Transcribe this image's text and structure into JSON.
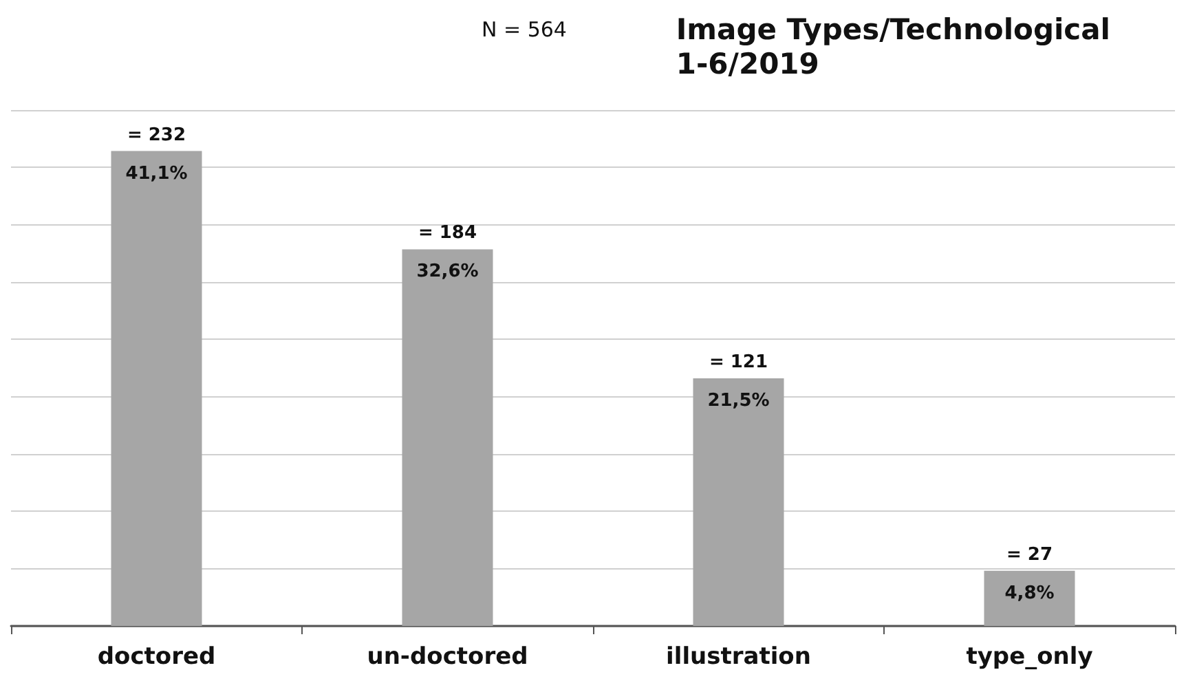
{
  "chart_data": {
    "type": "bar",
    "title": "Image Types/Technological",
    "subtitle": "1-6/2019",
    "categories": [
      "doctored",
      "un-doctored",
      "illustration",
      "type_only"
    ],
    "values": [
      232,
      184,
      121,
      27
    ],
    "color": "#a6a6a6",
    "value_labels": [
      "= 232",
      "= 184",
      "= 121",
      "= 27"
    ],
    "annotations": [
      "N = 564",
      {
        "text": "41,1%",
        "x": "doctored",
        "y": 232
      },
      {
        "text": "32,6%",
        "x": "un-doctored",
        "y": 184
      },
      {
        "text": "21,5%",
        "x": "illustration",
        "y": 121
      },
      {
        "text": "4,8%",
        "x": "type_only",
        "y": 27
      }
    ],
    "ylim": [
      0,
      252
    ],
    "yticks": [
      0,
      {
        "value": 28,
        "label": null
      },
      {
        "value": 56,
        "label": null
      },
      {
        "value": 84,
        "label": null
      },
      {
        "value": 112,
        "label": null
      },
      {
        "value": 140,
        "label": null
      },
      {
        "value": 168,
        "label": null
      },
      {
        "value": 196,
        "label": null
      },
      {
        "value": 224,
        "label": null
      },
      {
        "value": 252,
        "label": null
      }
    ],
    "grid": "y",
    "tick_labels": "x"
  }
}
